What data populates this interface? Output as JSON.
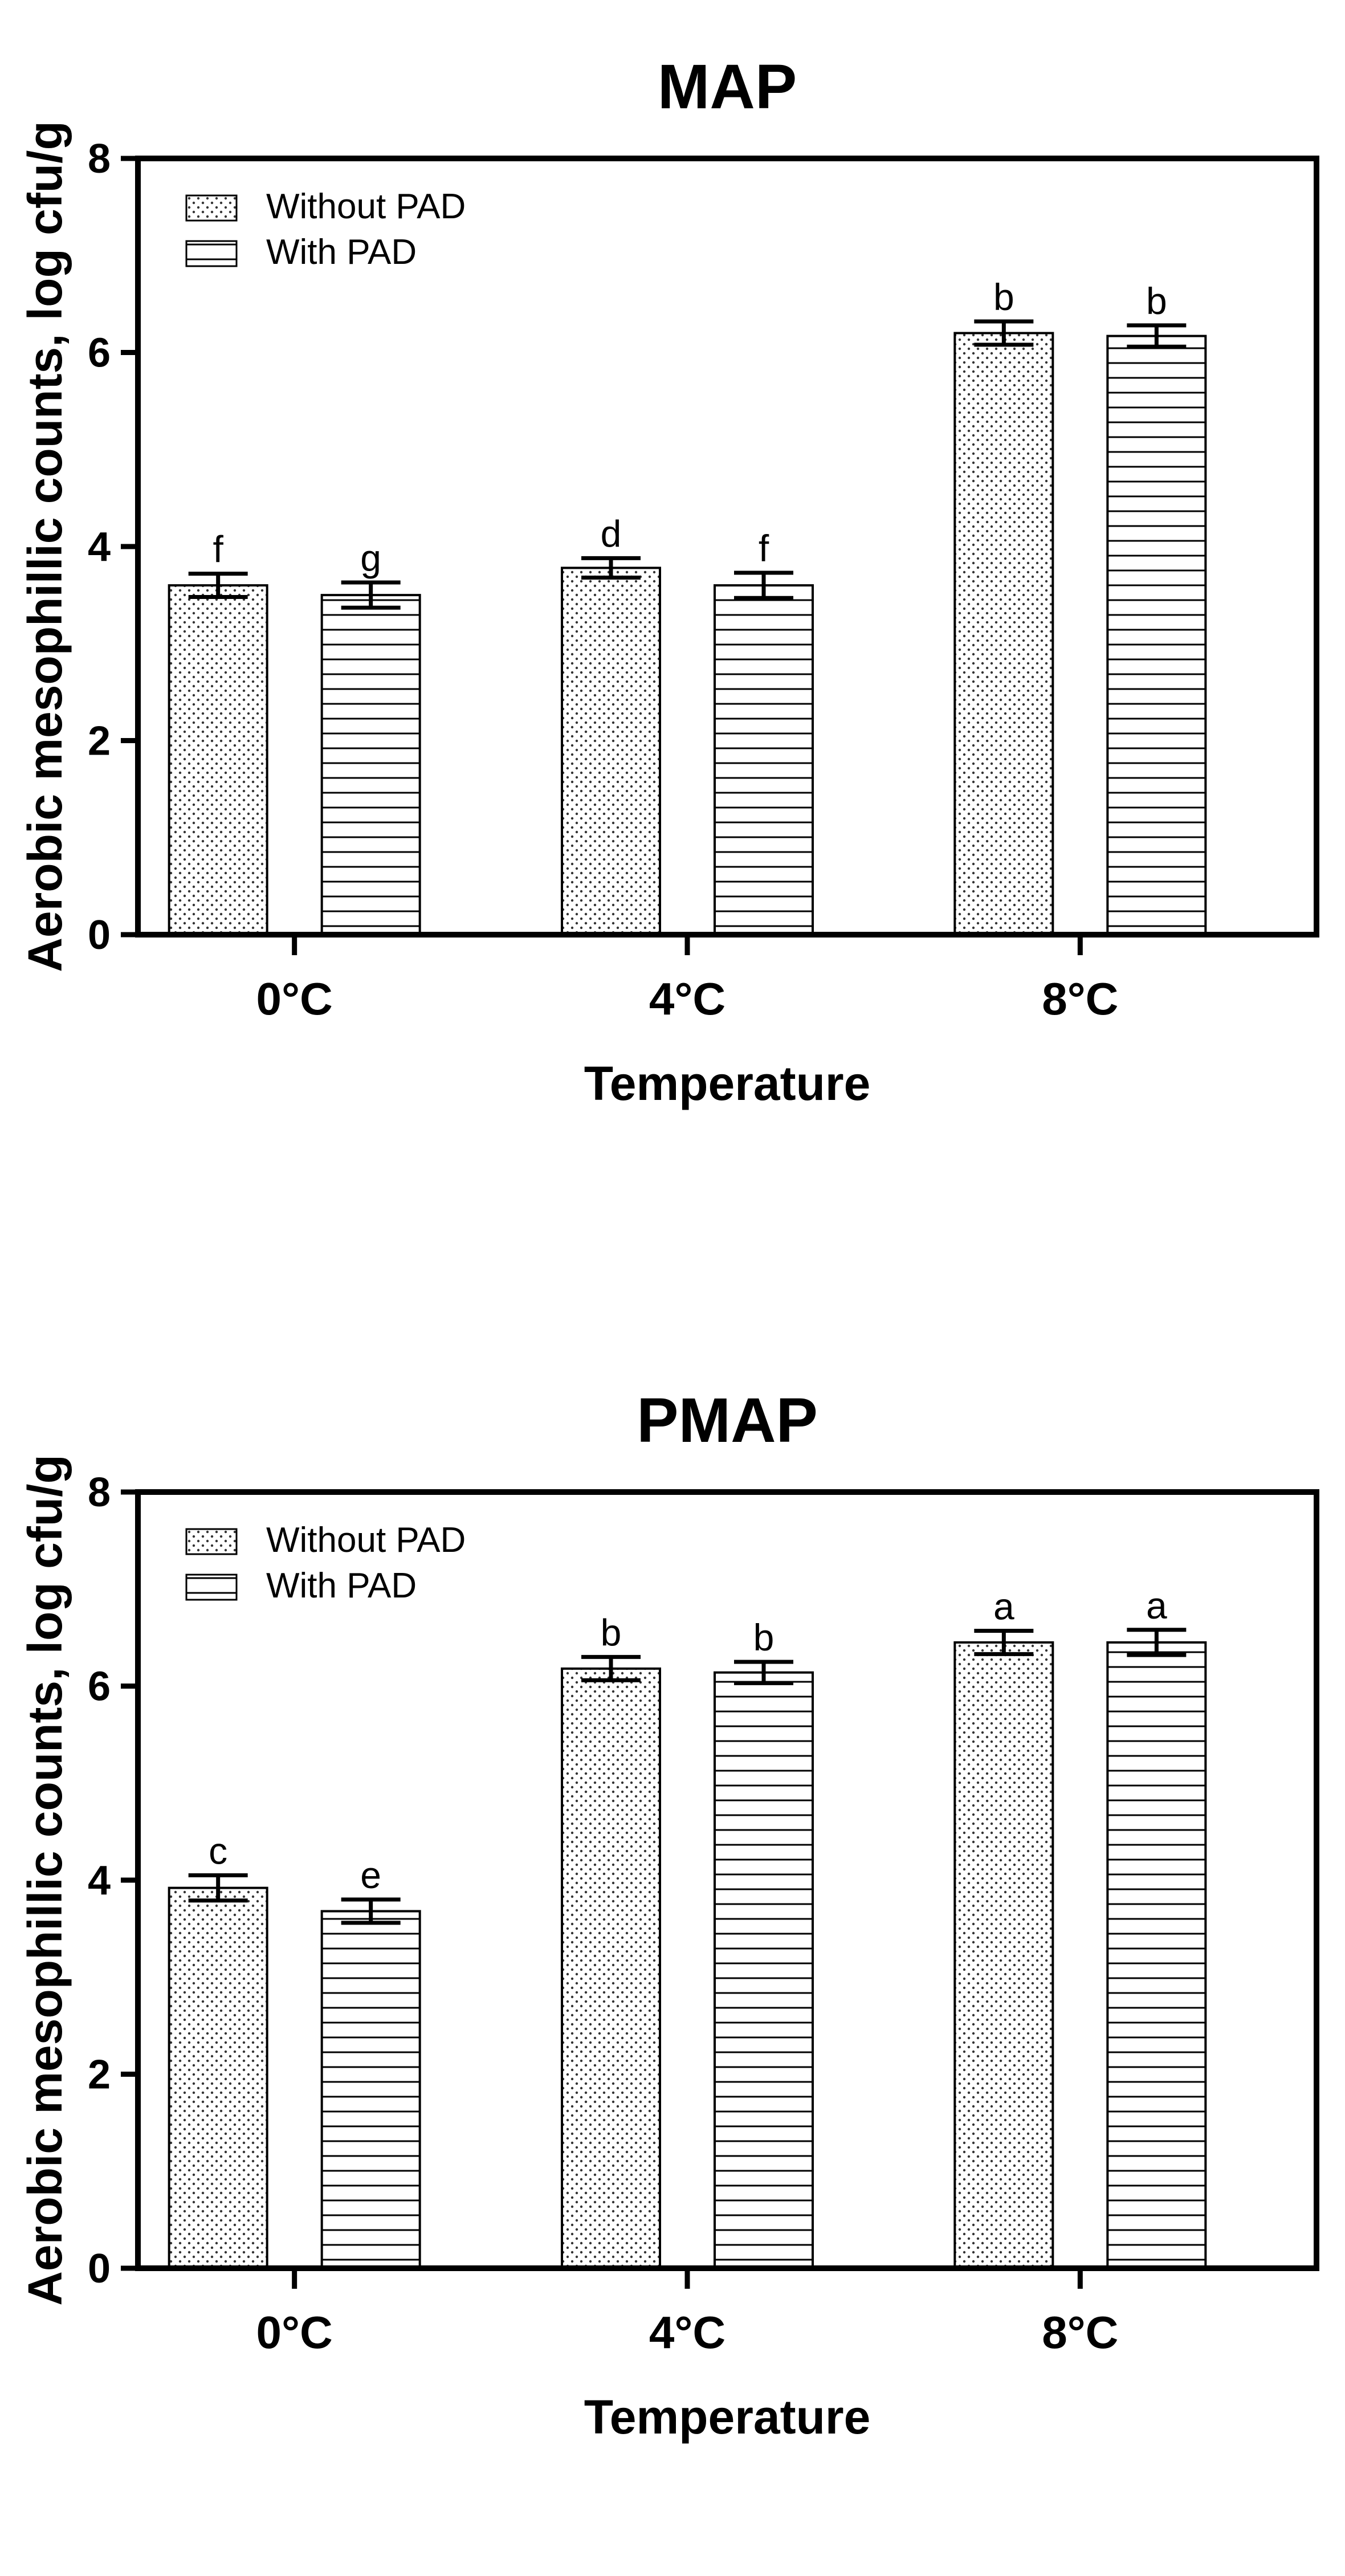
{
  "chart_data": [
    {
      "type": "bar",
      "title": "MAP",
      "xlabel": "Temperature",
      "ylabel": "Aerobic mesophillic counts, log cfu/g",
      "ylim": [
        0,
        8
      ],
      "yticks": [
        0,
        2,
        4,
        6,
        8
      ],
      "categories": [
        "0°C",
        "4°C",
        "8°C"
      ],
      "legend_position": "top-left",
      "series": [
        {
          "name": "Without PAD",
          "pattern": "dots",
          "values": [
            3.6,
            3.78,
            6.2
          ],
          "errors": [
            0.12,
            0.1,
            0.12
          ],
          "labels": [
            "f",
            "d",
            "b"
          ]
        },
        {
          "name": "With PAD",
          "pattern": "horizontal-lines",
          "values": [
            3.5,
            3.6,
            6.17
          ],
          "errors": [
            0.13,
            0.13,
            0.11
          ],
          "labels": [
            "g",
            "f",
            "b"
          ]
        }
      ]
    },
    {
      "type": "bar",
      "title": "PMAP",
      "xlabel": "Temperature",
      "ylabel": "Aerobic mesophillic counts, log cfu/g",
      "ylim": [
        0,
        8
      ],
      "yticks": [
        0,
        2,
        4,
        6,
        8
      ],
      "categories": [
        "0°C",
        "4°C",
        "8°C"
      ],
      "legend_position": "top-left",
      "series": [
        {
          "name": "Without PAD",
          "pattern": "dots",
          "values": [
            3.92,
            6.18,
            6.45
          ],
          "errors": [
            0.13,
            0.12,
            0.12
          ],
          "labels": [
            "c",
            "b",
            "a"
          ]
        },
        {
          "name": "With PAD",
          "pattern": "horizontal-lines",
          "values": [
            3.68,
            6.14,
            6.45
          ],
          "errors": [
            0.12,
            0.11,
            0.13
          ],
          "labels": [
            "e",
            "b",
            "a"
          ]
        }
      ]
    }
  ]
}
